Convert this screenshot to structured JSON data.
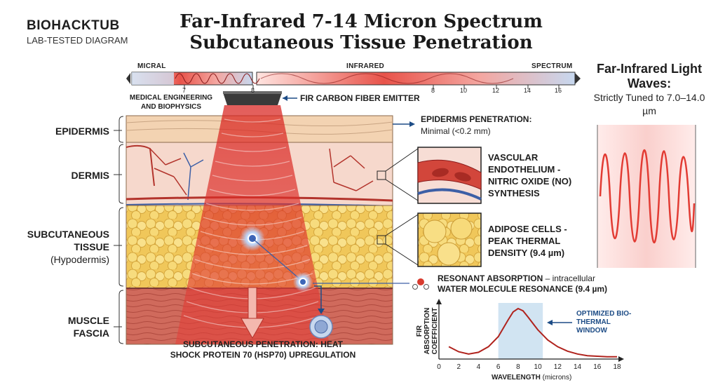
{
  "brand": {
    "name": "BIOHACKTUB",
    "tagline": "LAB-TESTED DIAGRAM"
  },
  "title": {
    "line1": "Far-Infrared 7-14 Micron Spectrum",
    "line2": "Subcutaneous Tissue Penetration"
  },
  "spectrum_bar": {
    "labels": {
      "left": "MICRAL",
      "middle": "INFRARED",
      "right": "SPECTRUM"
    },
    "ticks": [
      "7",
      "8",
      "8",
      "10",
      "12",
      "14",
      "16"
    ]
  },
  "emitter": {
    "label": "FIR CARBON FIBER EMITTER",
    "left_note": "MEDICAL ENGINEERING AND BIOPHYSICS"
  },
  "layers": {
    "epidermis": "EPIDERMIS",
    "dermis": "DERMIS",
    "subcutaneous": "SUBCUTANEOUS TISSUE",
    "hypodermis": "(Hypodermis)",
    "muscle": "MUSCLE FASCIA"
  },
  "annotations": {
    "epidermis_title": "EPIDERMIS PENETRATION:",
    "epidermis_value": "Minimal (<0.2 mm)",
    "vascular": "VASCULAR ENDOTHELIUM - NITRIC OXIDE (NO) SYNTHESIS",
    "adipose": "ADIPOSE CELLS - PEAK THERMAL DENSITY (9.4 µm)",
    "resonant_bold": "RESONANT ABSORPTION",
    "resonant_rest": " – intracellular",
    "resonant_line2": "WATER MOLECULE RESONANCE (9.4 µm)",
    "bottom": "SUBCUTANEOUS PENETRATION: HEAT SHOCK PROTEIN 70 (HSP70) UPREGULATION"
  },
  "side_panel": {
    "heading": "Far-Infrared Light Waves:",
    "subheading": "Strictly Tuned to 7.0–14.0 µm"
  },
  "chart_data": {
    "type": "line",
    "xlabel_bold": "WAVELENGTH",
    "xlabel_unit": "(microns)",
    "ylabel": "FIR ABSORPTION COEFFICIENT",
    "xlim": [
      0,
      18
    ],
    "xticks": [
      "0",
      "2",
      "4",
      "6",
      "8",
      "10",
      "12",
      "14",
      "16",
      "18"
    ],
    "x": [
      1,
      2,
      3,
      4,
      5,
      6,
      7,
      7.5,
      8,
      8.5,
      9,
      10,
      11,
      12,
      13,
      14,
      15,
      16,
      17,
      18
    ],
    "y": [
      0.22,
      0.13,
      0.09,
      0.12,
      0.22,
      0.4,
      0.7,
      0.84,
      0.9,
      0.86,
      0.75,
      0.52,
      0.34,
      0.22,
      0.14,
      0.09,
      0.06,
      0.05,
      0.04,
      0.04
    ],
    "highlight": {
      "label": "OPTIMIZED BIO-THERMAL WINDOW",
      "range": [
        6,
        10.5
      ]
    }
  },
  "colors": {
    "beam": "#e2362f",
    "skin": "#f3d3b2",
    "fat": "#f4d36a",
    "accent": "#1d4c86"
  }
}
